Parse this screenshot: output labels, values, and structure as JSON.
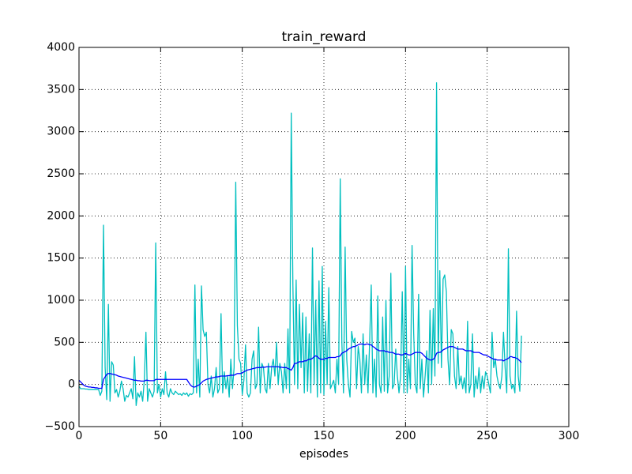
{
  "chart_data": {
    "type": "line",
    "title": "train_reward",
    "x_label": "episodes",
    "x": [
      0,
      1,
      2,
      3,
      4,
      5,
      6,
      7,
      8,
      9,
      10,
      11,
      12,
      13,
      14,
      15,
      16,
      17,
      18,
      19,
      20,
      21,
      22,
      23,
      24,
      25,
      26,
      27,
      28,
      29,
      30,
      31,
      32,
      33,
      34,
      35,
      36,
      37,
      38,
      39,
      40,
      41,
      42,
      43,
      44,
      45,
      46,
      47,
      48,
      49,
      50,
      51,
      52,
      53,
      54,
      55,
      56,
      57,
      58,
      59,
      60,
      61,
      62,
      63,
      64,
      65,
      66,
      67,
      68,
      69,
      70,
      71,
      72,
      73,
      74,
      75,
      76,
      77,
      78,
      79,
      80,
      81,
      82,
      83,
      84,
      85,
      86,
      87,
      88,
      89,
      90,
      91,
      92,
      93,
      94,
      95,
      96,
      97,
      98,
      99,
      100,
      101,
      102,
      103,
      104,
      105,
      106,
      107,
      108,
      109,
      110,
      111,
      112,
      113,
      114,
      115,
      116,
      117,
      118,
      119,
      120,
      121,
      122,
      123,
      124,
      125,
      126,
      127,
      128,
      129,
      130,
      131,
      132,
      133,
      134,
      135,
      136,
      137,
      138,
      139,
      140,
      141,
      142,
      143,
      144,
      145,
      146,
      147,
      148,
      149,
      150,
      151,
      152,
      153,
      154,
      155,
      156,
      157,
      158,
      159,
      160,
      161,
      162,
      163,
      164,
      165,
      166,
      167,
      168,
      169,
      170,
      171,
      172,
      173,
      174,
      175,
      176,
      177,
      178,
      179,
      180,
      181,
      182,
      183,
      184,
      185,
      186,
      187,
      188,
      189,
      190,
      191,
      192,
      193,
      194,
      195,
      196,
      197,
      198,
      199,
      200,
      201,
      202,
      203,
      204,
      205,
      206,
      207,
      208,
      209,
      210,
      211,
      212,
      213,
      214,
      215,
      216,
      217,
      218,
      219,
      220,
      221,
      222,
      223,
      224,
      225,
      226,
      227,
      228,
      229,
      230,
      231,
      232,
      233,
      234,
      235,
      236,
      237,
      238,
      239,
      240,
      241,
      242,
      243,
      244,
      245,
      246,
      247,
      248,
      249,
      250,
      251,
      252,
      253,
      254,
      255,
      256,
      257,
      258,
      259,
      260,
      261,
      262,
      263,
      264,
      265,
      266,
      267,
      268,
      269,
      270,
      271
    ],
    "series": [
      {
        "color": "#00bfbf",
        "values": [
          -20,
          -50,
          -50,
          -50,
          -55,
          -55,
          -60,
          -60,
          -60,
          -60,
          -60,
          -60,
          -60,
          -130,
          -80,
          1890,
          200,
          -180,
          950,
          -200,
          270,
          230,
          -100,
          -60,
          -150,
          -80,
          40,
          -50,
          -200,
          -130,
          -150,
          -100,
          -50,
          -170,
          330,
          -250,
          -100,
          -150,
          -80,
          -200,
          50,
          620,
          -200,
          -50,
          -100,
          -150,
          -80,
          1680,
          -100,
          0,
          -150,
          -50,
          -120,
          150,
          -100,
          -150,
          -50,
          -100,
          -120,
          -80,
          -100,
          -120,
          -110,
          -130,
          -100,
          -120,
          -100,
          -140,
          -110,
          -120,
          -100,
          1180,
          -100,
          300,
          -150,
          1170,
          650,
          570,
          620,
          0,
          -100,
          100,
          -150,
          -50,
          200,
          -100,
          -50,
          840,
          -100,
          150,
          -50,
          100,
          -150,
          300,
          -50,
          200,
          2400,
          700,
          300,
          250,
          -120,
          50,
          470,
          -100,
          -150,
          -100,
          300,
          400,
          -50,
          0,
          680,
          -100,
          250,
          200,
          -50,
          -100,
          250,
          -50,
          200,
          300,
          100,
          500,
          0,
          250,
          150,
          -100,
          250,
          -50,
          660,
          -100,
          3220,
          1200,
          0,
          1240,
          -50,
          950,
          200,
          850,
          -100,
          800,
          -80,
          600,
          -100,
          1620,
          0,
          1000,
          -150,
          1230,
          -100,
          1400,
          -120,
          750,
          0,
          1150,
          -50,
          0,
          50,
          -100,
          300,
          0,
          2440,
          500,
          -100,
          1630,
          300,
          0,
          -150,
          630,
          500,
          550,
          -50,
          450,
          300,
          -100,
          600,
          0,
          350,
          -100,
          500,
          1180,
          -100,
          300,
          -150,
          1050,
          0,
          -100,
          800,
          -80,
          1000,
          -100,
          100,
          1320,
          -50,
          0,
          420,
          100,
          -100,
          100,
          1100,
          -100,
          1400,
          -100,
          300,
          -50,
          1650,
          600,
          0,
          -100,
          1070,
          -50,
          300,
          -150,
          100,
          400,
          -100,
          880,
          0,
          900,
          100,
          3580,
          250,
          1350,
          200,
          1250,
          1300,
          1100,
          300,
          0,
          650,
          600,
          100,
          -50,
          450,
          0,
          100,
          -50,
          80,
          -100,
          750,
          -100,
          0,
          600,
          -150,
          100,
          -50,
          200,
          -100,
          100,
          -50,
          150,
          100,
          0,
          -100,
          620,
          200,
          300,
          100,
          0,
          -50,
          100,
          620,
          200,
          -100,
          1610,
          100,
          -50,
          0,
          -100,
          870,
          100,
          -80,
          580
        ]
      },
      {
        "color": "#0000ff",
        "values": [
          50,
          30,
          10,
          -10,
          -20,
          -25,
          -30,
          -30,
          -35,
          -35,
          -40,
          -40,
          -45,
          -45,
          -45,
          60,
          90,
          120,
          130,
          130,
          125,
          120,
          115,
          110,
          100,
          95,
          90,
          85,
          80,
          75,
          70,
          65,
          60,
          55,
          50,
          50,
          45,
          45,
          40,
          40,
          40,
          50,
          50,
          45,
          45,
          45,
          45,
          60,
          60,
          60,
          60,
          60,
          60,
          60,
          60,
          60,
          60,
          60,
          60,
          60,
          60,
          60,
          60,
          60,
          60,
          60,
          60,
          30,
          0,
          -20,
          -30,
          -30,
          -20,
          -10,
          0,
          20,
          40,
          50,
          60,
          65,
          70,
          75,
          80,
          85,
          90,
          90,
          95,
          100,
          100,
          100,
          100,
          105,
          105,
          110,
          110,
          110,
          120,
          130,
          130,
          130,
          140,
          150,
          160,
          170,
          175,
          180,
          185,
          190,
          195,
          200,
          200,
          200,
          205,
          205,
          205,
          210,
          210,
          210,
          210,
          210,
          210,
          210,
          210,
          205,
          205,
          200,
          200,
          200,
          190,
          180,
          170,
          200,
          250,
          250,
          260,
          270,
          270,
          270,
          280,
          280,
          290,
          300,
          300,
          310,
          330,
          340,
          330,
          310,
          300,
          300,
          300,
          310,
          310,
          320,
          320,
          320,
          320,
          320,
          330,
          330,
          340,
          370,
          380,
          390,
          400,
          420,
          430,
          440,
          450,
          450,
          460,
          470,
          480,
          480,
          480,
          470,
          480,
          480,
          470,
          470,
          450,
          440,
          420,
          410,
          400,
          400,
          400,
          400,
          390,
          390,
          380,
          380,
          380,
          370,
          360,
          360,
          360,
          350,
          350,
          360,
          370,
          360,
          350,
          350,
          360,
          370,
          380,
          380,
          380,
          380,
          370,
          350,
          330,
          310,
          300,
          290,
          290,
          300,
          320,
          370,
          380,
          380,
          390,
          410,
          420,
          430,
          440,
          450,
          450,
          450,
          440,
          430,
          420,
          420,
          420,
          420,
          410,
          400,
          400,
          400,
          400,
          390,
          380,
          380,
          380,
          380,
          370,
          360,
          350,
          350,
          340,
          330,
          320,
          310,
          300,
          300,
          290,
          290,
          290,
          290,
          280,
          290,
          300,
          310,
          330,
          330,
          320,
          320,
          310,
          300,
          280,
          260
        ]
      }
    ],
    "xlim": [
      0,
      300
    ],
    "xticks": [
      0,
      50,
      100,
      150,
      200,
      250,
      300
    ],
    "ylim": [
      -500,
      4000
    ],
    "yticks": [
      {
        "value": -500,
        "label": "−500"
      },
      0,
      500,
      1000,
      1500,
      2000,
      2500,
      3000,
      3500,
      4000
    ],
    "grid": true
  }
}
